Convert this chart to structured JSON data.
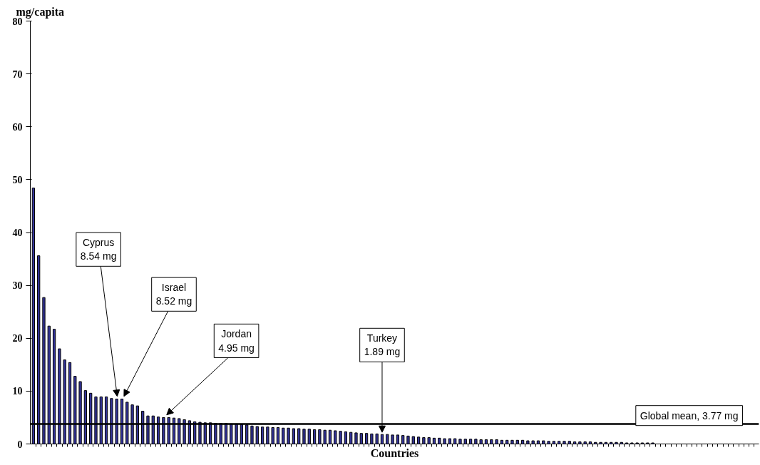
{
  "chart_data": {
    "type": "bar",
    "xlabel": "Countries",
    "ylabel": "mg/capita",
    "categories": [
      null,
      null,
      null,
      null,
      null,
      null,
      null,
      null,
      null,
      null,
      null,
      null,
      null,
      null,
      null,
      null,
      null,
      null,
      null,
      null,
      null,
      null,
      null,
      null,
      null,
      null,
      null,
      null,
      null,
      null,
      null,
      null,
      null,
      null,
      null,
      null,
      null,
      null,
      null,
      null,
      null,
      null,
      null,
      null,
      null,
      null,
      null,
      null,
      null,
      null,
      null,
      null,
      null,
      null,
      null,
      null,
      null,
      null,
      null,
      null,
      null,
      null,
      null,
      null,
      null,
      null,
      null,
      null,
      null,
      null,
      null,
      null,
      null,
      null,
      null,
      null,
      null,
      null,
      null,
      null,
      null,
      null,
      null,
      null,
      null,
      null,
      null,
      null,
      null,
      null,
      null,
      null,
      null,
      null,
      null,
      null,
      null,
      null,
      null,
      null,
      null,
      null,
      null,
      null,
      null,
      null,
      null,
      null,
      null,
      null,
      null,
      null,
      null,
      null,
      null,
      null,
      null,
      null,
      null,
      null,
      null,
      null,
      null,
      null,
      null,
      null,
      null,
      null,
      null,
      null,
      null,
      null,
      null,
      null,
      null,
      null,
      null,
      null,
      null,
      null
    ],
    "values": [
      48.4,
      35.6,
      27.7,
      22.3,
      21.7,
      18.0,
      15.9,
      15.4,
      12.8,
      11.8,
      10.1,
      9.6,
      8.9,
      8.9,
      8.9,
      8.6,
      8.5,
      8.5,
      7.9,
      7.4,
      7.2,
      6.2,
      5.3,
      5.3,
      5.1,
      5.0,
      5.0,
      4.9,
      4.8,
      4.6,
      4.4,
      4.2,
      4.1,
      4.0,
      4.0,
      3.9,
      3.9,
      3.9,
      3.8,
      3.8,
      3.7,
      3.6,
      3.4,
      3.3,
      3.2,
      3.2,
      3.1,
      3.1,
      3.0,
      3.0,
      2.9,
      2.9,
      2.8,
      2.8,
      2.7,
      2.7,
      2.6,
      2.6,
      2.5,
      2.4,
      2.3,
      2.2,
      2.1,
      2.0,
      2.0,
      1.9,
      1.9,
      1.8,
      1.8,
      1.7,
      1.7,
      1.6,
      1.5,
      1.4,
      1.3,
      1.2,
      1.2,
      1.1,
      1.1,
      1.0,
      1.0,
      1.0,
      0.9,
      0.9,
      0.9,
      0.9,
      0.8,
      0.8,
      0.8,
      0.8,
      0.7,
      0.7,
      0.7,
      0.7,
      0.7,
      0.6,
      0.6,
      0.6,
      0.6,
      0.5,
      0.5,
      0.5,
      0.5,
      0.5,
      0.4,
      0.4,
      0.4,
      0.4,
      0.3,
      0.3,
      0.3,
      0.3,
      0.3,
      0.3,
      0.2,
      0.2,
      0.2,
      0.2,
      0.2,
      0.2,
      null,
      null,
      null,
      null,
      null,
      null,
      null,
      null,
      null,
      null,
      null,
      null,
      null,
      null,
      null,
      null,
      null,
      null,
      null,
      null
    ],
    "color": "#333399",
    "ylim": [
      0,
      80
    ],
    "yticks": [
      0,
      10,
      20,
      30,
      40,
      50,
      60,
      70,
      80
    ],
    "grid": false,
    "ref_lines": [
      {
        "axis": "y",
        "value": 3.77,
        "label": "Global mean, 3.77 mg",
        "color": "#000000"
      }
    ],
    "annotations": [
      "Cyprus\n8.54 mg",
      "Israel\n8.52 mg",
      "Jordan\n4.95 mg",
      "Turkey\n1.89 mg"
    ]
  }
}
